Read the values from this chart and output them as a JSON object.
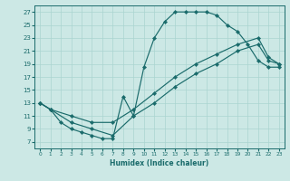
{
  "xlabel": "Humidex (Indice chaleur)",
  "bg_color": "#cce8e5",
  "line_color": "#1a6b6b",
  "grid_color": "#aad4d0",
  "xlim": [
    -0.5,
    23.5
  ],
  "ylim": [
    6,
    28
  ],
  "xticks": [
    0,
    1,
    2,
    3,
    4,
    5,
    6,
    7,
    8,
    9,
    10,
    11,
    12,
    13,
    14,
    15,
    16,
    17,
    18,
    19,
    20,
    21,
    22,
    23
  ],
  "yticks": [
    7,
    9,
    11,
    13,
    15,
    17,
    19,
    21,
    23,
    25,
    27
  ],
  "curve1_x": [
    0,
    1,
    2,
    3,
    4,
    5,
    6,
    7,
    8,
    9,
    10,
    11,
    12,
    13,
    14,
    15,
    16,
    17,
    18,
    19,
    20,
    21,
    22,
    23
  ],
  "curve1_y": [
    13,
    12,
    10,
    9,
    8.5,
    8,
    7.5,
    7.5,
    14,
    11,
    18.5,
    23,
    25.5,
    27,
    27,
    27,
    27,
    26.5,
    25,
    24,
    22,
    19.5,
    18.5,
    18.5
  ],
  "curve2_x": [
    0,
    1,
    3,
    5,
    7,
    9,
    11,
    13,
    15,
    17,
    19,
    21,
    22,
    23
  ],
  "curve2_y": [
    13,
    12,
    11,
    10,
    10,
    12,
    14.5,
    17,
    19,
    20.5,
    22,
    23,
    20,
    19
  ],
  "curve3_x": [
    0,
    1,
    3,
    5,
    7,
    9,
    11,
    13,
    15,
    17,
    19,
    21,
    22,
    23
  ],
  "curve3_y": [
    13,
    12,
    10,
    9,
    8,
    11,
    13,
    15.5,
    17.5,
    19,
    21,
    22,
    19.5,
    19
  ]
}
